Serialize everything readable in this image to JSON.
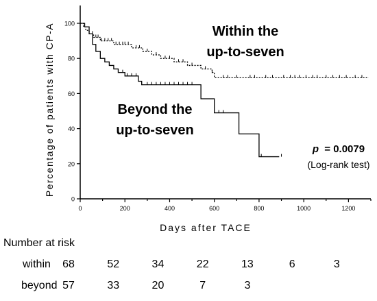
{
  "chart_data": {
    "type": "line",
    "subtype": "kaplan-meier",
    "title": "",
    "xlabel": "Days after TACE",
    "ylabel": "Percentage of patients with CP-A",
    "xlim": [
      0,
      1300
    ],
    "ylim": [
      0,
      100
    ],
    "x_ticks": [
      0,
      200,
      400,
      600,
      800,
      1000,
      1200
    ],
    "y_ticks": [
      0,
      20,
      40,
      60,
      80,
      100
    ],
    "grid": false,
    "series": [
      {
        "name": "Within the up-to-seven",
        "style": "dotted",
        "steps": [
          [
            0,
            100
          ],
          [
            15,
            98
          ],
          [
            25,
            96
          ],
          [
            40,
            94
          ],
          [
            60,
            92
          ],
          [
            90,
            90
          ],
          [
            150,
            88
          ],
          [
            230,
            86
          ],
          [
            280,
            84
          ],
          [
            320,
            82
          ],
          [
            360,
            80
          ],
          [
            420,
            78
          ],
          [
            480,
            76
          ],
          [
            540,
            74
          ],
          [
            590,
            72
          ],
          [
            600,
            69
          ],
          [
            1290,
            69
          ]
        ],
        "censor_x": [
          40,
          55,
          70,
          80,
          95,
          110,
          125,
          140,
          160,
          175,
          190,
          200,
          215,
          250,
          265,
          300,
          340,
          380,
          400,
          440,
          460,
          500,
          560,
          590,
          640,
          660,
          700,
          760,
          780,
          830,
          860,
          910,
          940,
          960,
          980,
          1010,
          1040,
          1060,
          1100,
          1130,
          1160,
          1190,
          1230,
          1260
        ]
      },
      {
        "name": "Beyond the up-to-seven",
        "style": "solid",
        "steps": [
          [
            0,
            100
          ],
          [
            20,
            98
          ],
          [
            40,
            94
          ],
          [
            55,
            88
          ],
          [
            70,
            84
          ],
          [
            90,
            80
          ],
          [
            110,
            78
          ],
          [
            130,
            76
          ],
          [
            150,
            74
          ],
          [
            170,
            72
          ],
          [
            200,
            70
          ],
          [
            260,
            67
          ],
          [
            275,
            65
          ],
          [
            540,
            57
          ],
          [
            600,
            49
          ],
          [
            710,
            37
          ],
          [
            800,
            24
          ],
          [
            890,
            24
          ]
        ],
        "censor_x": [
          190,
          210,
          230,
          250,
          275,
          300,
          320,
          340,
          360,
          380,
          400,
          420,
          440,
          460,
          480,
          500,
          620,
          640,
          810,
          900
        ]
      }
    ],
    "annotations": {
      "within_line1": "Within the",
      "within_line2": "up-to-seven",
      "beyond_line1": "Beyond the",
      "beyond_line2": "up-to-seven",
      "p_label": "p",
      "p_value": "= 0.0079",
      "test": "(Log-rank test)"
    }
  },
  "risk_table": {
    "title": "Number at risk",
    "x": [
      0,
      200,
      400,
      600,
      800,
      1000,
      1200
    ],
    "rows": [
      {
        "label": "within",
        "values": [
          "68",
          "52",
          "34",
          "22",
          "13",
          "6",
          "3"
        ]
      },
      {
        "label": "beyond",
        "values": [
          "57",
          "33",
          "20",
          "7",
          "3"
        ]
      }
    ]
  }
}
